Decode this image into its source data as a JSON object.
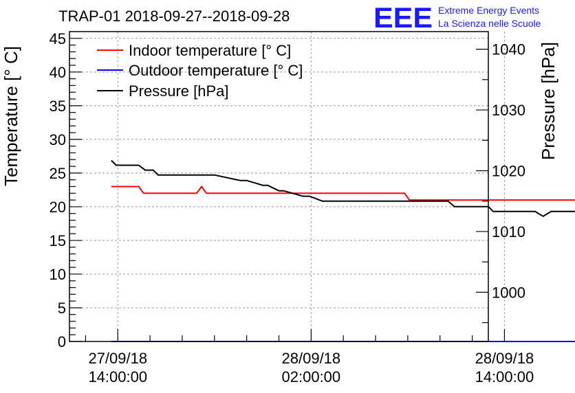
{
  "title": "TRAP-01 2018-09-27--2018-09-28",
  "logo": {
    "mark": "EEE",
    "line1": "Extreme Energy Events",
    "line2": "La Scienza nelle Scuole",
    "color": "#1a1aff"
  },
  "chart_data": {
    "type": "line",
    "title": "TRAP-01 2018-09-27--2018-09-28",
    "x_unit": "hours since 27/09/18 00:00",
    "xlim": [
      11,
      37
    ],
    "x_ticks": [
      {
        "x": 14,
        "line1": "27/09/18",
        "line2": "14:00:00"
      },
      {
        "x": 26,
        "line1": "28/09/18",
        "line2": "02:00:00"
      },
      {
        "x": 38,
        "line1": "28/09/18",
        "line2": "14:00:00"
      }
    ],
    "left_axis": {
      "label": "Temperature [° C]",
      "ylim": [
        0,
        46
      ],
      "ticks": [
        0,
        5,
        10,
        15,
        20,
        25,
        30,
        35,
        40,
        45
      ]
    },
    "right_axis": {
      "label": "Pressure [hPa]",
      "ylim": [
        991.9,
        1042.9
      ],
      "ticks": [
        1000,
        1010,
        1020,
        1030,
        1040
      ]
    },
    "legend_position": "top-left",
    "series": [
      {
        "name": "Indoor temperature [° C]",
        "color": "#ff0000",
        "axis": "left",
        "x": [
          13.6,
          15.3,
          15.6,
          18.9,
          19.2,
          19.5,
          25.0,
          31.8,
          32.1,
          46.9
        ],
        "y": [
          23,
          23,
          22,
          22,
          23,
          22,
          22,
          22,
          21,
          21
        ]
      },
      {
        "name": "Outdoor temperature [° C]",
        "color": "#0000ff",
        "axis": "left",
        "x": [
          13.6,
          46.9
        ],
        "y": [
          0,
          0
        ]
      },
      {
        "name": "Pressure [hPa]",
        "color": "#000000",
        "axis": "right",
        "x": [
          13.6,
          13.9,
          15.3,
          15.7,
          16.2,
          16.5,
          20.0,
          21.6,
          22.0,
          23.0,
          23.3,
          24.0,
          24.3,
          25.5,
          25.9,
          26.7,
          27.0,
          29.0,
          34.5,
          34.9,
          37.0,
          37.3,
          39.9,
          40.4,
          40.9,
          41.3,
          46.9
        ],
        "y": [
          1021.7,
          1020.9,
          1020.9,
          1020.1,
          1020.1,
          1019.3,
          1019.3,
          1018.4,
          1018.4,
          1017.6,
          1017.6,
          1016.7,
          1016.7,
          1015.8,
          1015.8,
          1015.0,
          1015.0,
          1015.0,
          1015.0,
          1014.1,
          1014.1,
          1013.3,
          1013.3,
          1012.5,
          1013.3,
          1013.3,
          1013.3
        ]
      }
    ]
  }
}
